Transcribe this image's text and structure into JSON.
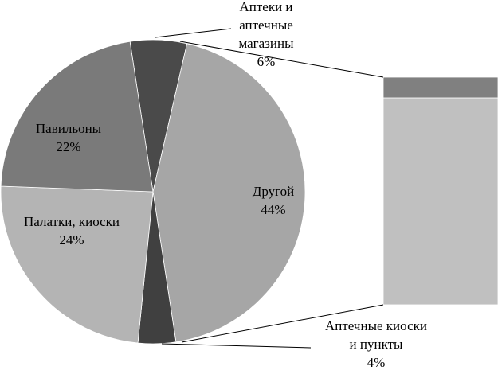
{
  "chart_data": {
    "type": "pie-of-bar",
    "labels": [
      "Аптеки и\nаптечные\nмагазины",
      "Другой",
      "Аптечные киоски\nи пункты",
      "Палатки, киоски",
      "Павильоны"
    ],
    "values": [
      6,
      44,
      4,
      24,
      22
    ],
    "value_labels": [
      "6%",
      "44%",
      "4%",
      "24%",
      "22%"
    ],
    "colors": [
      "#4a4a4a",
      "#a6a6a6",
      "#404040",
      "#b4b4b4",
      "#7a7a7a"
    ],
    "breakdown": {
      "values": [
        40,
        4
      ],
      "colors": [
        "#c0c0c0",
        "#808080"
      ]
    }
  }
}
